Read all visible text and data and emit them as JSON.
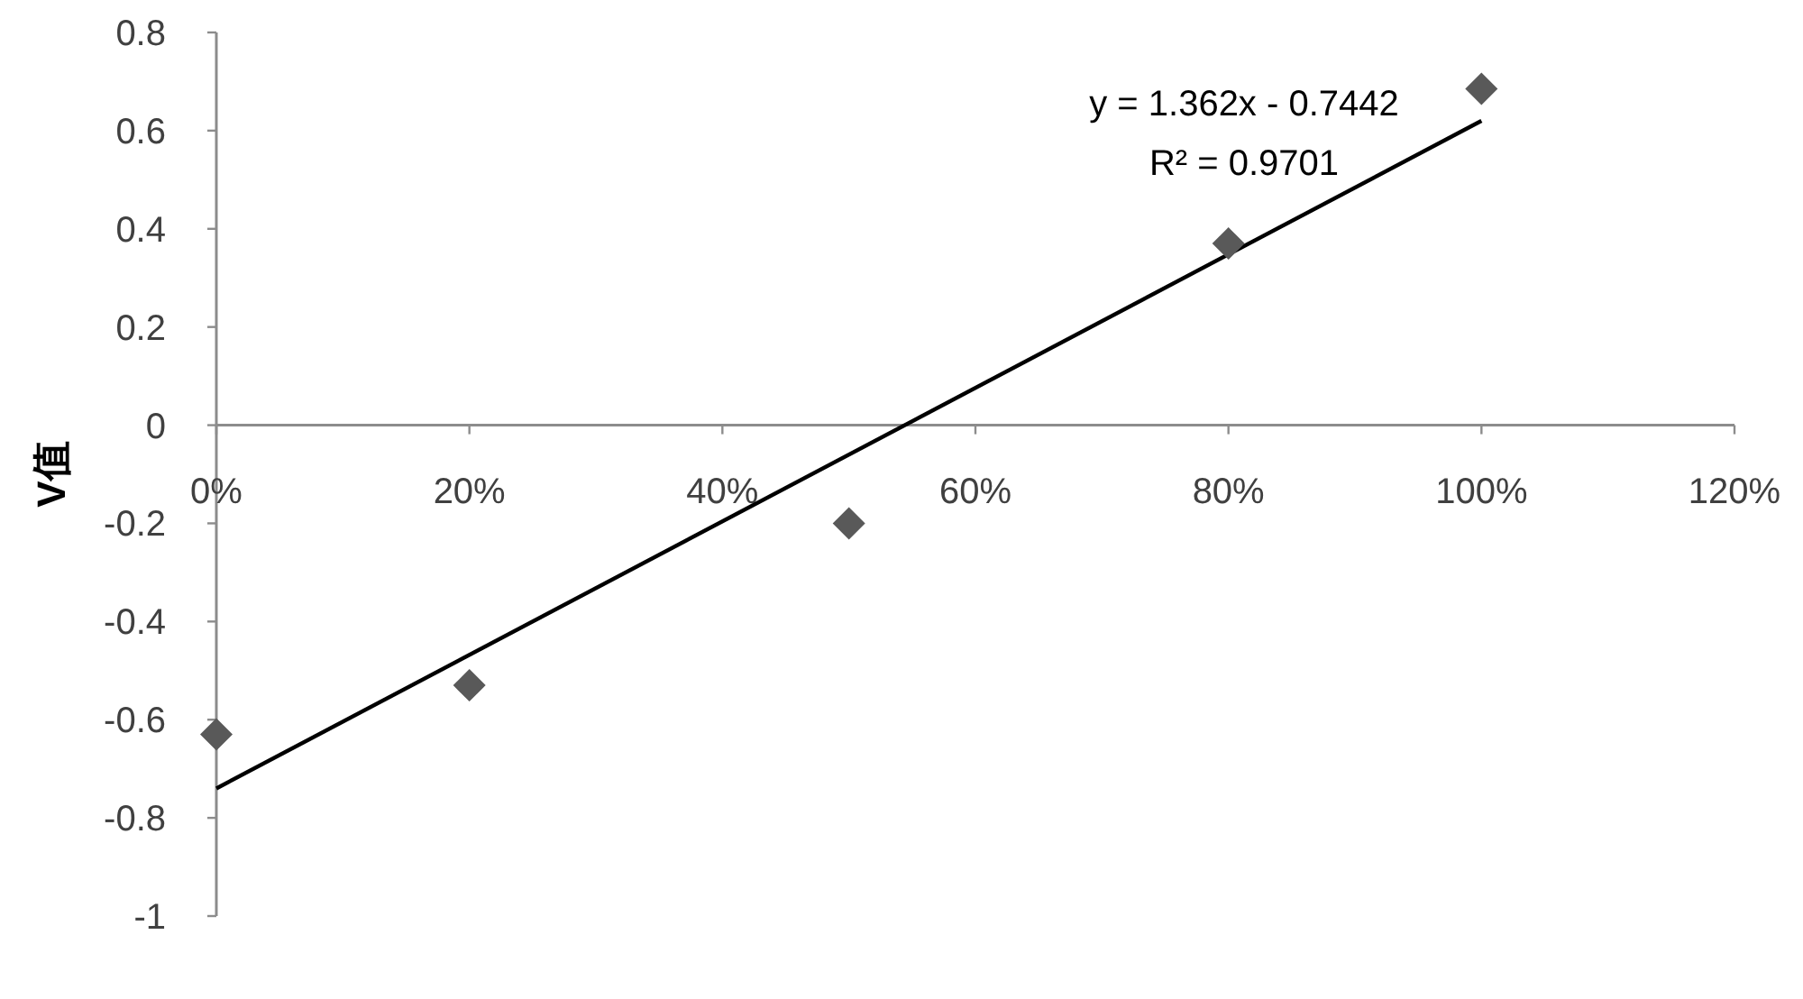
{
  "chart_data": {
    "type": "scatter",
    "ylabel": "V值",
    "xlim": [
      0,
      1.2
    ],
    "ylim": [
      -1,
      0.8
    ],
    "xticks": [
      {
        "value": 0,
        "label": "0%"
      },
      {
        "value": 0.2,
        "label": "20%"
      },
      {
        "value": 0.4,
        "label": "40%"
      },
      {
        "value": 0.6,
        "label": "60%"
      },
      {
        "value": 0.8,
        "label": "80%"
      },
      {
        "value": 1,
        "label": "100%"
      },
      {
        "value": 1.2,
        "label": "120%"
      }
    ],
    "yticks": [
      -1,
      -0.8,
      -0.6,
      -0.4,
      -0.2,
      0,
      0.2,
      0.4,
      0.6,
      0.8
    ],
    "series": [
      {
        "marker": "diamond",
        "color": "#595959",
        "x": [
          0,
          0.2,
          0.5,
          0.8,
          1
        ],
        "values": [
          -0.63,
          -0.53,
          -0.2,
          0.37,
          0.685
        ]
      },
      {
        "type": "line",
        "color": "#000000",
        "x": [
          0,
          1
        ],
        "values": [
          -0.74,
          0.62
        ]
      }
    ],
    "annotations": [
      "y = 1.362x - 0.7442",
      "R² = 0.9701"
    ]
  }
}
